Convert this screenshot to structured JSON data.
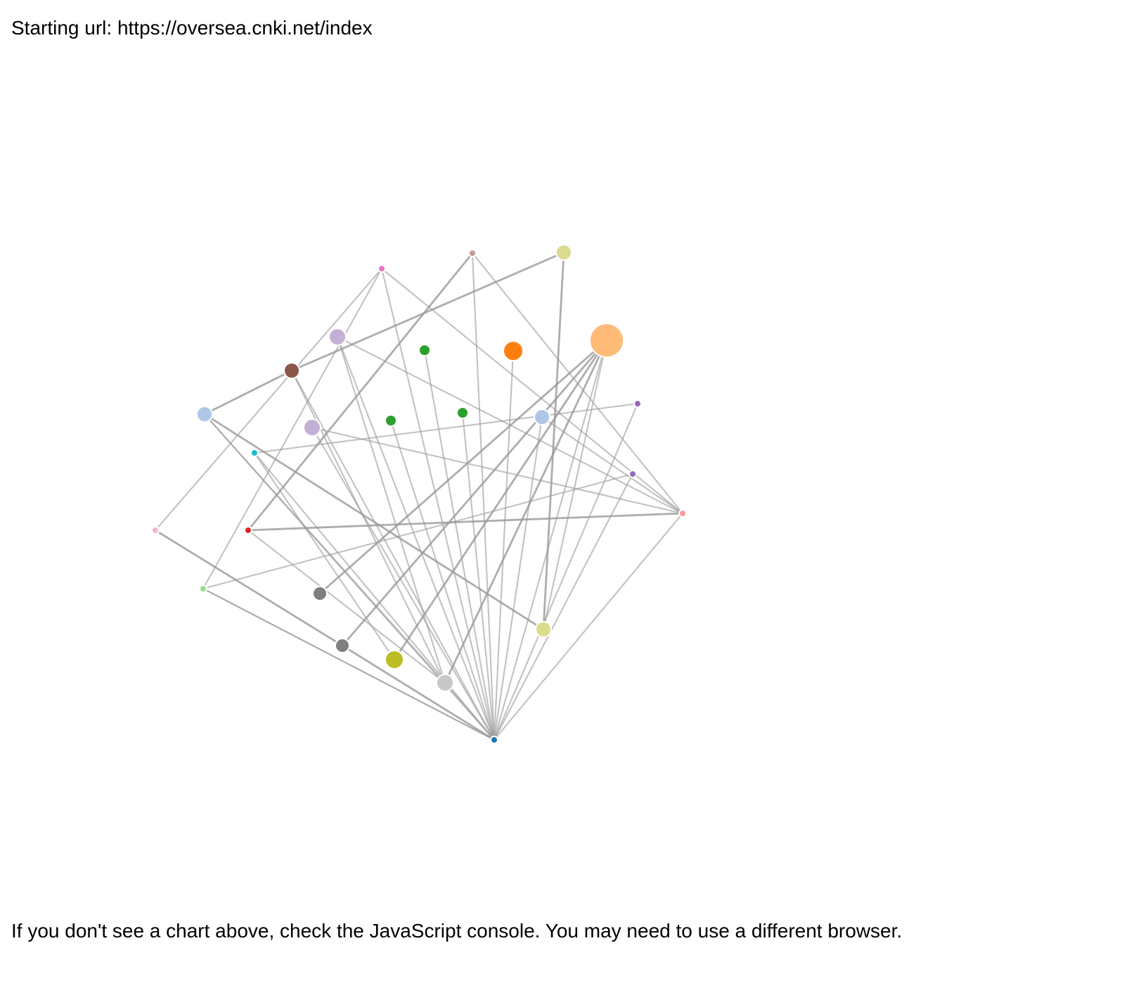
{
  "header": {
    "starting_url_text": "Starting url: https://oversea.cnki.net/index"
  },
  "footer": {
    "message": "If you don't see a chart above, check the JavaScript console. You may need to use a different browser."
  },
  "graph": {
    "link_color": "#999999",
    "nodes": [
      {
        "id": "hub",
        "color": "#1f77b4",
        "r": 5
      },
      {
        "id": "orange-big",
        "color": "#ffbb78",
        "r": 24
      },
      {
        "id": "salmon",
        "color": "#ff9896",
        "r": 5
      },
      {
        "id": "pink-top",
        "color": "#e377c2",
        "r": 5
      },
      {
        "id": "tan-top",
        "color": "#c49c94",
        "r": 5
      },
      {
        "id": "olive-light-top",
        "color": "#dbdb8d",
        "r": 11
      },
      {
        "id": "lavender-1",
        "color": "#c5b0d5",
        "r": 12
      },
      {
        "id": "brown",
        "color": "#8c564b",
        "r": 11
      },
      {
        "id": "lightblue-1",
        "color": "#aec7e8",
        "r": 11
      },
      {
        "id": "lavender-2",
        "color": "#c5b0d5",
        "r": 12
      },
      {
        "id": "teal",
        "color": "#17becf",
        "r": 5
      },
      {
        "id": "pink-left",
        "color": "#f7b6d2",
        "r": 5
      },
      {
        "id": "red",
        "color": "#d62728",
        "r": 5
      },
      {
        "id": "lightgreen",
        "color": "#98df8a",
        "r": 5
      },
      {
        "id": "gray-1",
        "color": "#7f7f7f",
        "r": 10
      },
      {
        "id": "gray-2",
        "color": "#7f7f7f",
        "r": 10
      },
      {
        "id": "olive",
        "color": "#bcbd22",
        "r": 13
      },
      {
        "id": "silver",
        "color": "#c7c7c7",
        "r": 12
      },
      {
        "id": "olive-light-2",
        "color": "#dbdb8d",
        "r": 11
      },
      {
        "id": "lightblue-2",
        "color": "#aec7e8",
        "r": 11
      },
      {
        "id": "purple-1",
        "color": "#9467bd",
        "r": 5
      },
      {
        "id": "purple-2",
        "color": "#9467bd",
        "r": 5
      },
      {
        "id": "green-1",
        "color": "#2ca02c",
        "r": 8
      },
      {
        "id": "green-2",
        "color": "#2ca02c",
        "r": 8
      },
      {
        "id": "green-3",
        "color": "#2ca02c",
        "r": 8
      },
      {
        "id": "orange",
        "color": "#ff7f0e",
        "r": 14
      }
    ],
    "links": [
      {
        "source": "pink-top",
        "target": "hub",
        "w": 1.5
      },
      {
        "source": "tan-top",
        "target": "hub",
        "w": 1.5
      },
      {
        "source": "lavender-1",
        "target": "hub",
        "w": 1.5
      },
      {
        "source": "green-1",
        "target": "hub",
        "w": 1.5
      },
      {
        "source": "green-2",
        "target": "hub",
        "w": 1.5
      },
      {
        "source": "green-3",
        "target": "hub",
        "w": 1.5
      },
      {
        "source": "orange",
        "target": "hub",
        "w": 1.5
      },
      {
        "source": "lavender-2",
        "target": "hub",
        "w": 1.5
      },
      {
        "source": "teal",
        "target": "hub",
        "w": 1.5
      },
      {
        "source": "brown",
        "target": "hub",
        "w": 1.5
      },
      {
        "source": "lightblue-1",
        "target": "hub",
        "w": 1.5
      },
      {
        "source": "lightblue-2",
        "target": "hub",
        "w": 1.5
      },
      {
        "source": "orange-big",
        "target": "hub",
        "w": 1.5
      },
      {
        "source": "purple-1",
        "target": "hub",
        "w": 1.5
      },
      {
        "source": "purple-2",
        "target": "hub",
        "w": 1.5
      },
      {
        "source": "salmon",
        "target": "hub",
        "w": 1.5
      },
      {
        "source": "lightgreen",
        "target": "hub",
        "w": 1.5
      },
      {
        "source": "gray-2",
        "target": "hub",
        "w": 2
      },
      {
        "source": "silver",
        "target": "hub",
        "w": 1.5
      },
      {
        "source": "pink-left",
        "target": "gray-2",
        "w": 2
      },
      {
        "source": "olive-light-top",
        "target": "brown",
        "w": 2
      },
      {
        "source": "brown",
        "target": "lightblue-1",
        "w": 2
      },
      {
        "source": "lightblue-1",
        "target": "olive-light-2",
        "w": 2
      },
      {
        "source": "lightblue-1",
        "target": "silver",
        "w": 1.5
      },
      {
        "source": "tan-top",
        "target": "red",
        "w": 2
      },
      {
        "source": "red",
        "target": "salmon",
        "w": 2
      },
      {
        "source": "red",
        "target": "silver",
        "w": 1.5
      },
      {
        "source": "pink-top",
        "target": "pink-left",
        "w": 1.5
      },
      {
        "source": "pink-top",
        "target": "lightgreen",
        "w": 1.5
      },
      {
        "source": "pink-top",
        "target": "salmon",
        "w": 1.5
      },
      {
        "source": "tan-top",
        "target": "salmon",
        "w": 1.5
      },
      {
        "source": "lavender-1",
        "target": "salmon",
        "w": 1.5
      },
      {
        "source": "lavender-1",
        "target": "silver",
        "w": 1.5
      },
      {
        "source": "lavender-2",
        "target": "salmon",
        "w": 1.5
      },
      {
        "source": "lightblue-2",
        "target": "salmon",
        "w": 1.5
      },
      {
        "source": "teal",
        "target": "purple-1",
        "w": 1.5
      },
      {
        "source": "teal",
        "target": "olive",
        "w": 1.5
      },
      {
        "source": "lightgreen",
        "target": "purple-2",
        "w": 1.5
      },
      {
        "source": "lightgreen",
        "target": "hub",
        "w": 1.5
      },
      {
        "source": "brown",
        "target": "silver",
        "w": 1.5
      },
      {
        "source": "olive-light-top",
        "target": "olive-light-2",
        "w": 2
      },
      {
        "source": "orange-big",
        "target": "gray-1",
        "w": 2
      },
      {
        "source": "orange-big",
        "target": "gray-2",
        "w": 2
      },
      {
        "source": "orange-big",
        "target": "olive",
        "w": 2
      },
      {
        "source": "orange-big",
        "target": "silver",
        "w": 2
      },
      {
        "source": "orange-big",
        "target": "olive-light-2",
        "w": 1.5
      }
    ]
  }
}
